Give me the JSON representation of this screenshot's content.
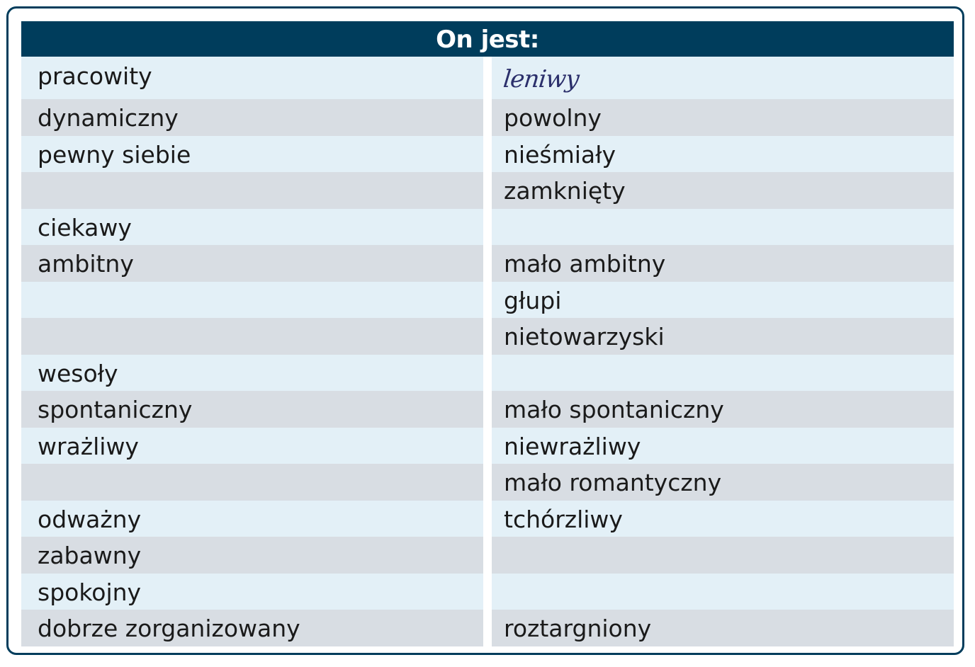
{
  "header": {
    "title": "On jest:"
  },
  "rows": [
    {
      "left": "pracowity",
      "right": "leniwy",
      "right_handwritten": true
    },
    {
      "left": "dynamiczny",
      "right": "powolny"
    },
    {
      "left": "pewny siebie",
      "right": "nieśmiały"
    },
    {
      "left": "",
      "right": "zamknięty"
    },
    {
      "left": "ciekawy",
      "right": ""
    },
    {
      "left": "ambitny",
      "right": "mało ambitny"
    },
    {
      "left": "",
      "right": "głupi"
    },
    {
      "left": "",
      "right": "nietowarzyski"
    },
    {
      "left": "wesoły",
      "right": ""
    },
    {
      "left": "spontaniczny",
      "right": "mało spontaniczny"
    },
    {
      "left": "wrażliwy",
      "right": "niewrażliwy"
    },
    {
      "left": "",
      "right": "mało romantyczny"
    },
    {
      "left": "odważny",
      "right": "tchórzliwy"
    },
    {
      "left": "zabawny",
      "right": ""
    },
    {
      "left": "spokojny",
      "right": ""
    },
    {
      "left": "dobrze zorganizowany",
      "right": "roztargniony"
    }
  ],
  "colors": {
    "frame": "#003d5c",
    "header_bg": "#003d5c",
    "row_light": "#e3f0f7",
    "row_dark": "#d8dde3",
    "handwriting": "#2b2f6b"
  }
}
